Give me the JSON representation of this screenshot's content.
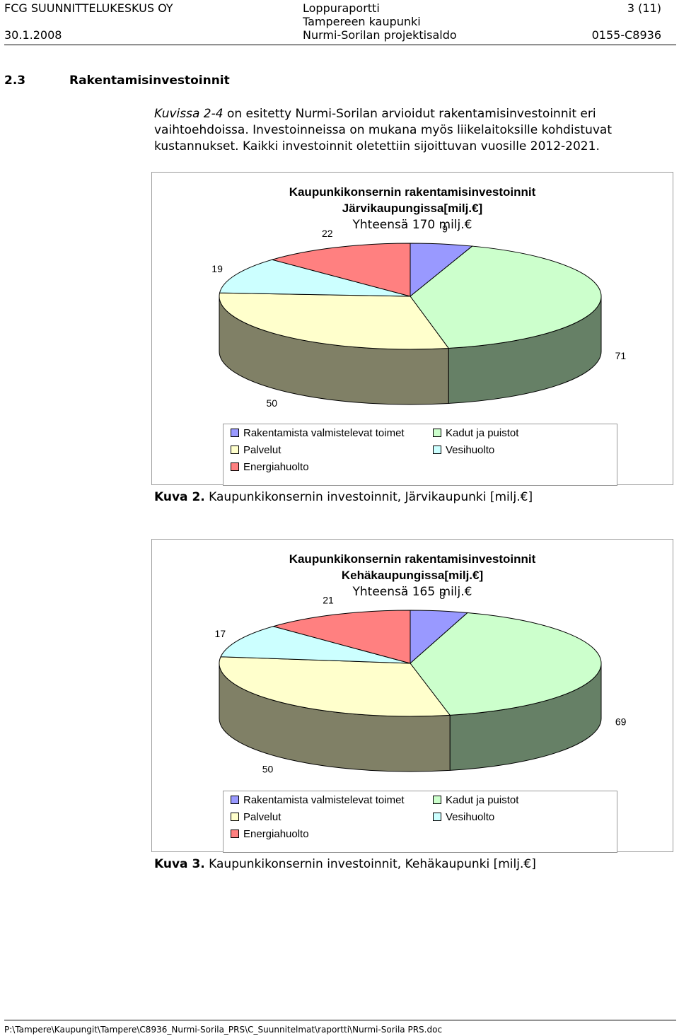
{
  "header": {
    "company": "FCG SUUNNITTELUKESKUS OY",
    "date": "30.1.2008",
    "doc_type": "Loppuraportti",
    "client": "Tampereen kaupunki",
    "project": "Nurmi-Sorilan projektisaldo",
    "page": "3 (11)",
    "project_code": "0155-C8936"
  },
  "section": {
    "number": "2.3",
    "title": "Rakentamisinvestoinnit"
  },
  "paragraph": {
    "line1_ref": "Kuvissa 2-4",
    "line1_rest": " on esitetty Nurmi-Sorilan arvioidut rakentamisinvestoinnit eri",
    "line2": "vaihtoehdoissa. Investoinneissa on mukana myös liikelaitoksille kohdistuvat",
    "line3": "kustannukset. Kaikki investoinnit oletettiin sijoittuvan vuosille 2012-2021."
  },
  "legend_labels": {
    "rakentamista": "Rakentamista valmistelevat toimet",
    "kadut": "Kadut ja puistot",
    "palvelut": "Palvelut",
    "vesihuolto": "Vesihuolto",
    "energiahuolto": "Energiahuolto"
  },
  "colors": {
    "rakentamista": "#9999ff",
    "kadut": "#ccffcc",
    "palvelut": "#ffffcc",
    "vesihuolto": "#ccffff",
    "energiahuolto": "#ff8080"
  },
  "chart_data": [
    {
      "type": "pie",
      "title_line1": "Kaupunkikonsernin rakentamisinvestoinnit",
      "title_line2": "Järvikaupungissa[milj.€]",
      "total": "Yhteensä 170 milj.€",
      "categories": [
        "Rakentamista valmistelevat toimet",
        "Kadut ja puistot",
        "Palvelut",
        "Vesihuolto",
        "Energiahuolto"
      ],
      "values": [
        9,
        71,
        50,
        19,
        22
      ],
      "data_labels": [
        "9",
        "71",
        "50",
        "19",
        "22"
      ],
      "legend": "bottom",
      "caption_label": "Kuva 2.",
      "caption_text": " Kaupunkikonsernin investoinnit, Järvikaupunki [milj.€]"
    },
    {
      "type": "pie",
      "title_line1": "Kaupunkikonsernin rakentamisinvestoinnit",
      "title_line2": "Kehäkaupungissa[milj.€]",
      "total": "Yhteensä 165 milj.€",
      "categories": [
        "Rakentamista valmistelevat toimet",
        "Kadut ja puistot",
        "Palvelut",
        "Vesihuolto",
        "Energiahuolto"
      ],
      "values": [
        8,
        69,
        50,
        17,
        21
      ],
      "data_labels": [
        "8",
        "69",
        "50",
        "17",
        "21"
      ],
      "legend": "bottom",
      "caption_label": "Kuva 3.",
      "caption_text": " Kaupunkikonsernin investoinnit, Kehäkaupunki [milj.€]"
    }
  ],
  "footer": {
    "path": "P:\\Tampere\\Kaupungit\\Tampere\\C8936_Nurmi-Sorila_PRS\\C_Suunnitelmat\\raportti\\Nurmi-Sorila PRS.doc"
  }
}
